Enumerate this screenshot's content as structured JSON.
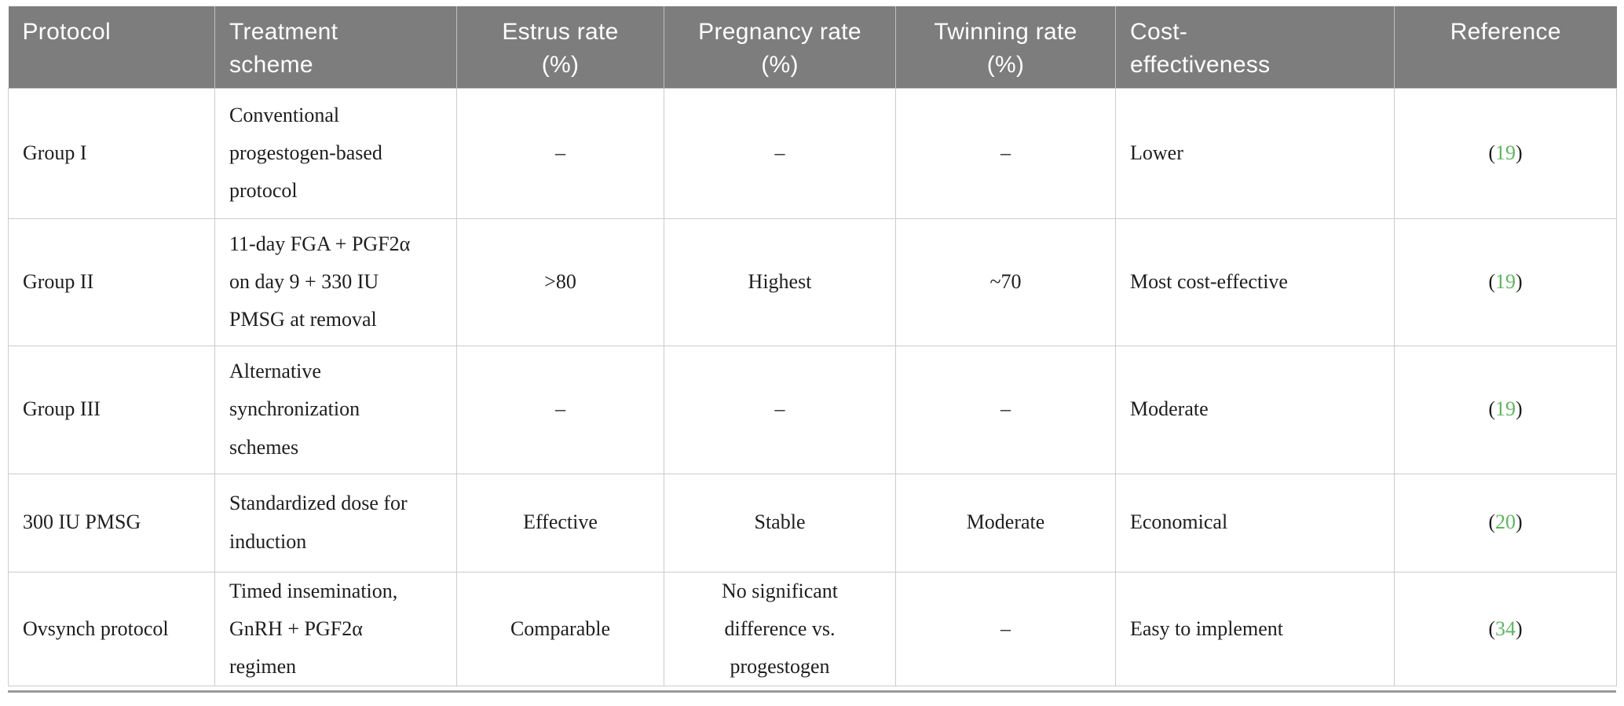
{
  "table": {
    "columns": [
      {
        "key": "protocol",
        "label": "Protocol"
      },
      {
        "key": "treatment-scheme",
        "label": "Treatment\nscheme"
      },
      {
        "key": "estrus-rate",
        "label": "Estrus rate\n(%)"
      },
      {
        "key": "pregnancy-rate",
        "label": "Pregnancy rate\n(%)"
      },
      {
        "key": "twinning-rate",
        "label": "Twinning rate\n(%)"
      },
      {
        "key": "cost-effectiveness",
        "label": "Cost-\neffectiveness"
      },
      {
        "key": "reference",
        "label": "Reference"
      }
    ],
    "rows": [
      {
        "cells": [
          "Group I",
          "Conventional\nprogestogen-based\nprotocol",
          "–",
          "–",
          "–",
          "Lower",
          "19"
        ]
      },
      {
        "cells": [
          "Group II",
          "11-day FGA + PGF2α\non day 9 + 330 IU\nPMSG at removal",
          ">80",
          "Highest",
          "~70",
          "Most cost-effective",
          "19"
        ]
      },
      {
        "cells": [
          "Group III",
          "Alternative\nsynchronization\nschemes",
          "–",
          "–",
          "–",
          "Moderate",
          "19"
        ]
      },
      {
        "cells": [
          "300 IU PMSG",
          "Standardized dose for\ninduction",
          "Effective",
          "Stable",
          "Moderate",
          "Economical",
          "20"
        ]
      },
      {
        "cells": [
          "Ovsynch protocol",
          "Timed insemination,\nGnRH + PGF2α\nregimen",
          "Comparable",
          "No significant\ndifference vs.\nprogestogen",
          "–",
          "Easy to implement",
          "34"
        ]
      }
    ],
    "ref_paren_open": "(",
    "ref_paren_close": ")",
    "colors": {
      "header_bg": "#7d7d7d",
      "header_text": "#ffffff",
      "body_text": "#1e1e1e",
      "grid_line": "#cccccc",
      "reference_green": "#5cb85c",
      "bottom_rule": "#9a9a9a"
    }
  }
}
